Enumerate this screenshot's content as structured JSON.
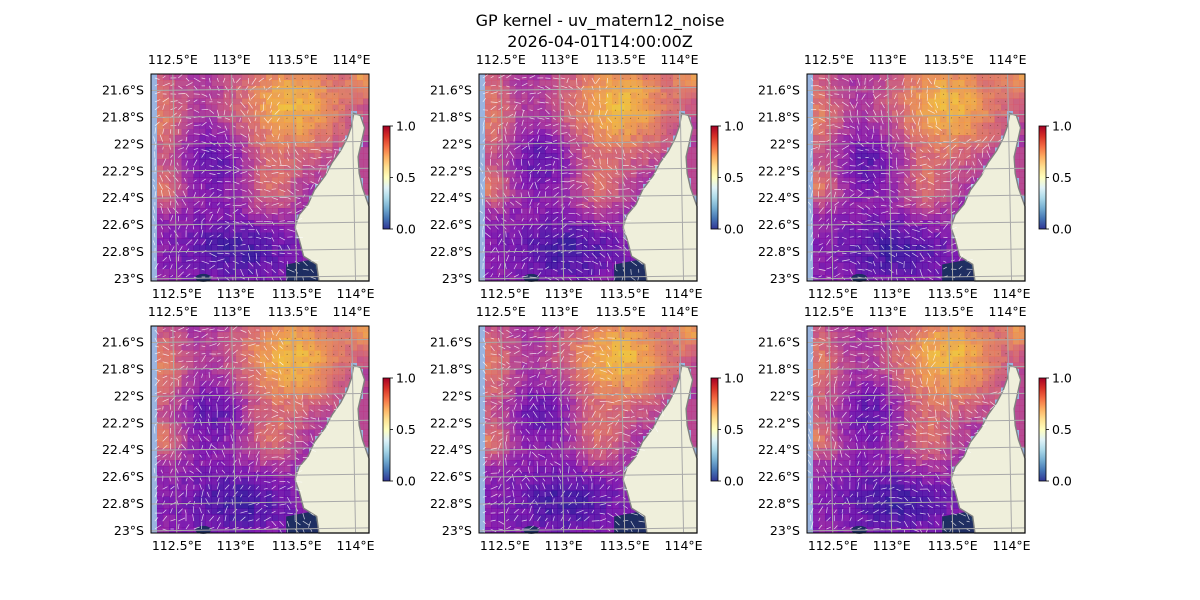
{
  "figure": {
    "title": "GP kernel - uv_matern12_noise",
    "subtitle": "2026-04-01T14:00:00Z"
  },
  "map": {
    "lon_ticks": [
      "112.5°E",
      "113°E",
      "113.5°E",
      "114°E"
    ],
    "lat_ticks": [
      "21.6°S",
      "21.8°S",
      "22°S",
      "22.2°S",
      "22.4°S",
      "22.6°S",
      "22.8°S",
      "23°S"
    ],
    "colorbar_ticks": [
      "0.0",
      "0.5",
      "1.0"
    ],
    "colorbar_range": [
      0.0,
      1.0
    ],
    "colormap": "RdYlBu_r",
    "field_colormap": "plasma",
    "land_color": "#efefdb",
    "ocean_color": "#9ab5e0",
    "coastline_color": "#808080",
    "grid": true,
    "panels": [
      {
        "name": "panel-1",
        "seed": 11
      },
      {
        "name": "panel-2",
        "seed": 23
      },
      {
        "name": "panel-3",
        "seed": 37
      },
      {
        "name": "panel-4",
        "seed": 41
      },
      {
        "name": "panel-5",
        "seed": 53
      },
      {
        "name": "panel-6",
        "seed": 67
      }
    ]
  }
}
